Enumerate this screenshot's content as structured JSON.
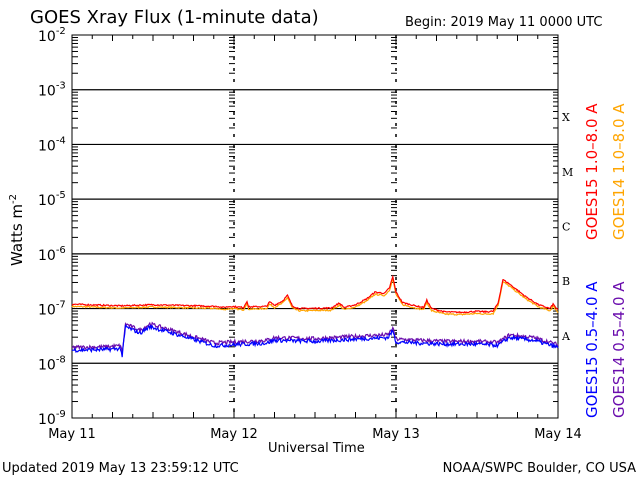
{
  "chart_data": {
    "type": "line",
    "title": "GOES Xray Flux (1-minute data)",
    "begin": "Begin:  2019 May 11 0000 UTC",
    "xlabel": "Universal Time",
    "ylabel": "Watts m",
    "ylabel_sup": "-2",
    "x_unit": "days since 2019 May 11 0000 UTC",
    "xlim": [
      0,
      3
    ],
    "x_ticks": [
      {
        "v": 0,
        "label": "May 11"
      },
      {
        "v": 1,
        "label": "May 12"
      },
      {
        "v": 2,
        "label": "May 13"
      },
      {
        "v": 3,
        "label": "May 14"
      }
    ],
    "y_scale": "log",
    "ylim_log10": [
      -9,
      -2
    ],
    "y_ticks": [
      {
        "v": -2,
        "exp": "-2"
      },
      {
        "v": -3,
        "exp": "-3"
      },
      {
        "v": -4,
        "exp": "-4"
      },
      {
        "v": -5,
        "exp": "-5"
      },
      {
        "v": -6,
        "exp": "-6"
      },
      {
        "v": -7,
        "exp": "-7"
      },
      {
        "v": -8,
        "exp": "-8"
      },
      {
        "v": -9,
        "exp": "-9"
      }
    ],
    "tick_base": "10",
    "flare_classes": [
      {
        "label": "X",
        "v": -3.5
      },
      {
        "label": "M",
        "v": -4.5
      },
      {
        "label": "C",
        "v": -5.5
      },
      {
        "label": "B",
        "v": -6.5
      },
      {
        "label": "A",
        "v": -7.5
      }
    ],
    "series": [
      {
        "name": "GOES15 1.0–8.0 A",
        "color": "#ff0000",
        "offset": 0,
        "points": [
          [
            0,
            -6.92
          ],
          [
            0.3,
            -6.95
          ],
          [
            0.5,
            -6.93
          ],
          [
            0.9,
            -6.96
          ],
          [
            0.93,
            -6.98
          ],
          [
            0.98,
            -6.96
          ],
          [
            1.06,
            -6.98
          ],
          [
            1.08,
            -6.86
          ],
          [
            1.09,
            -6.97
          ],
          [
            1.2,
            -6.96
          ],
          [
            1.22,
            -6.88
          ],
          [
            1.25,
            -6.94
          ],
          [
            1.3,
            -6.86
          ],
          [
            1.33,
            -6.76
          ],
          [
            1.36,
            -6.95
          ],
          [
            1.4,
            -7.0
          ],
          [
            1.6,
            -6.99
          ],
          [
            1.65,
            -6.9
          ],
          [
            1.68,
            -6.98
          ],
          [
            1.75,
            -6.93
          ],
          [
            1.82,
            -6.82
          ],
          [
            1.87,
            -6.7
          ],
          [
            1.93,
            -6.72
          ],
          [
            1.96,
            -6.62
          ],
          [
            1.98,
            -6.42
          ],
          [
            2.0,
            -6.7
          ],
          [
            2.04,
            -6.89
          ],
          [
            2.12,
            -6.95
          ],
          [
            2.17,
            -6.98
          ],
          [
            2.19,
            -6.85
          ],
          [
            2.22,
            -7.0
          ],
          [
            2.3,
            -7.06
          ],
          [
            2.4,
            -7.07
          ],
          [
            2.5,
            -7.05
          ],
          [
            2.55,
            -7.06
          ],
          [
            2.6,
            -7.05
          ],
          [
            2.63,
            -6.9
          ],
          [
            2.66,
            -6.47
          ],
          [
            2.7,
            -6.55
          ],
          [
            2.8,
            -6.78
          ],
          [
            2.88,
            -6.93
          ],
          [
            2.95,
            -7.0
          ],
          [
            2.97,
            -6.92
          ],
          [
            3.0,
            -7.03
          ]
        ]
      },
      {
        "name": "GOES14 1.0–8.0 A",
        "color": "#ffa500",
        "offset": -0.04,
        "points": "same-as-GOES15-long"
      },
      {
        "name": "GOES15 0.5–4.0 A",
        "color": "#0000ff",
        "offset": -0.03,
        "points": [
          [
            0,
            -7.73
          ],
          [
            0.2,
            -7.72
          ],
          [
            0.3,
            -7.7
          ],
          [
            0.31,
            -7.84
          ],
          [
            0.33,
            -7.3
          ],
          [
            0.42,
            -7.42
          ],
          [
            0.48,
            -7.3
          ],
          [
            0.62,
            -7.42
          ],
          [
            0.88,
            -7.65
          ],
          [
            1.2,
            -7.6
          ],
          [
            1.25,
            -7.55
          ],
          [
            1.5,
            -7.57
          ],
          [
            1.8,
            -7.52
          ],
          [
            1.95,
            -7.5
          ],
          [
            1.98,
            -7.38
          ],
          [
            2.0,
            -7.58
          ],
          [
            2.3,
            -7.62
          ],
          [
            2.5,
            -7.62
          ],
          [
            2.63,
            -7.64
          ],
          [
            2.7,
            -7.5
          ],
          [
            2.85,
            -7.55
          ],
          [
            3.0,
            -7.68
          ]
        ]
      },
      {
        "name": "GOES14 0.5–4.0 A",
        "color": "#6a0dad",
        "offset": 0.02,
        "points": "same-as-GOES15-short"
      }
    ]
  },
  "footer": {
    "updated": "Updated 2019 May 13 23:59:12 UTC",
    "credit": "NOAA/SWPC Boulder, CO USA"
  }
}
